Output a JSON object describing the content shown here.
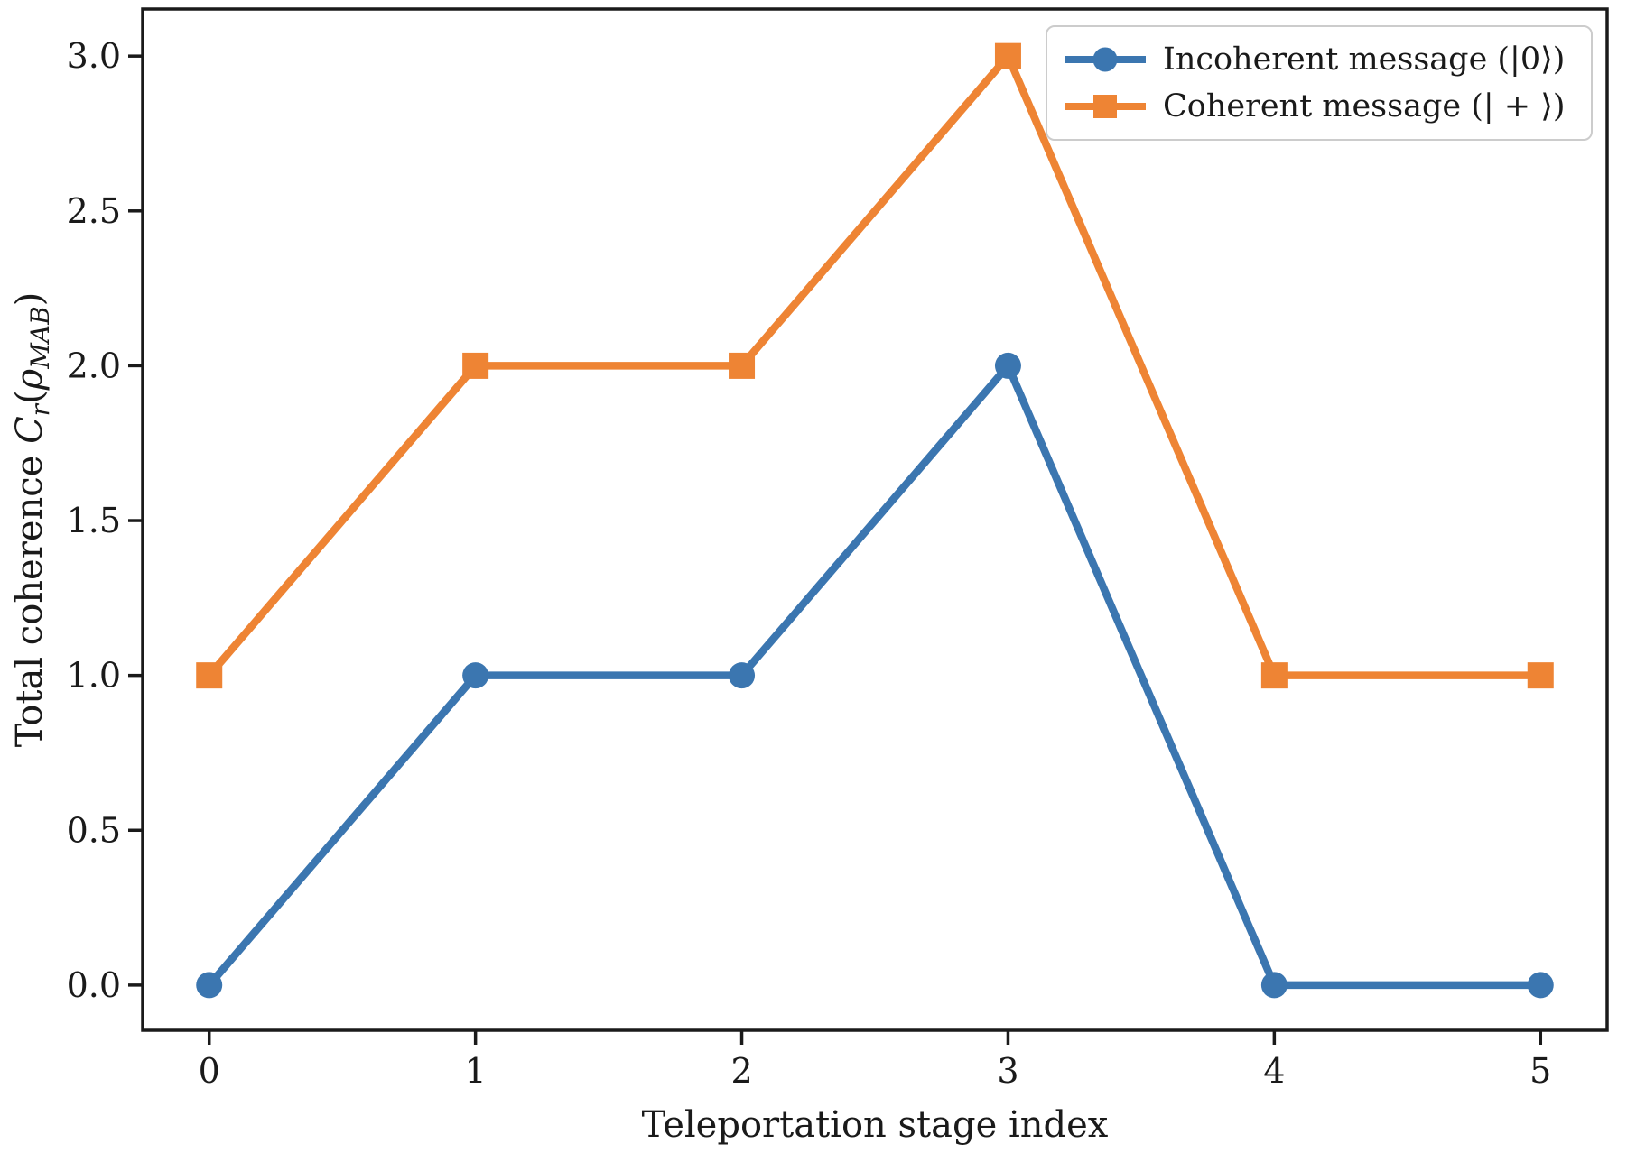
{
  "chart_data": {
    "type": "line",
    "x": [
      0,
      1,
      2,
      3,
      4,
      5
    ],
    "series": [
      {
        "name": "Incoherent message (|0⟩)",
        "values": [
          0,
          1,
          1,
          2,
          0,
          0
        ],
        "color": "#3b76b0",
        "marker": "circle"
      },
      {
        "name": "Coherent message (| + ⟩)",
        "values": [
          1,
          2,
          2,
          3,
          1,
          1
        ],
        "color": "#ee8434",
        "marker": "square"
      }
    ],
    "title": "",
    "xlabel": "Teleportation stage index",
    "ylabel": "Total coherence Cr(ρMAB)",
    "ylabel_parts": {
      "prefix": "Total coherence ",
      "c": "C",
      "r": "r",
      "open": "(",
      "rho": "ρ",
      "mab": "MAB",
      "close": ")"
    },
    "xticks": [
      "0",
      "1",
      "2",
      "3",
      "4",
      "5"
    ],
    "yticks": [
      "0.0",
      "0.5",
      "1.0",
      "1.5",
      "2.0",
      "2.5",
      "3.0"
    ],
    "xlim": [
      -0.25,
      5.25
    ],
    "ylim": [
      -0.146,
      3.152
    ],
    "grid": false,
    "legend_position": "upper right"
  },
  "colors": {
    "axis": "#1a1a1a",
    "background": "#ffffff",
    "legend_border": "#cccccc",
    "series_blue": "#3b76b0",
    "series_orange": "#ee8434"
  }
}
